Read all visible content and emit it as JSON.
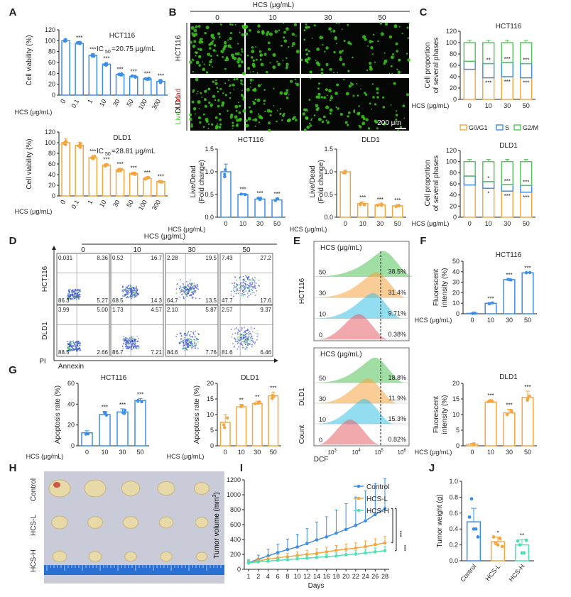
{
  "colors": {
    "blue": "#3d8ee6",
    "orange": "#f5a640",
    "green": "#55c45a",
    "red": "#e8636b",
    "cyan": "#3cc3e6",
    "teal": "#4fe0b4",
    "axis": "#222222",
    "live": "#3cc71f",
    "dead": "#e02020"
  },
  "panelA": {
    "letter": "A",
    "xlabel": "HCS (μg/mL)",
    "ylabel": "Cell viability (%)",
    "charts": [
      {
        "title": "HCT116",
        "ic50_prefix": "IC",
        "ic50_sub": "50",
        "ic50_value": "=20.75 μg/mL",
        "categories": [
          "0",
          "0.1",
          "1",
          "10",
          "30",
          "50",
          "100",
          "300"
        ],
        "values": [
          100,
          95,
          73,
          57,
          38,
          34,
          30,
          25
        ],
        "errors": [
          3,
          3,
          3,
          3,
          2,
          2,
          2,
          3
        ],
        "sig": [
          "",
          "***",
          "***",
          "***",
          "***",
          "***",
          "***",
          "***"
        ],
        "yticks": [
          "0",
          "20",
          "40",
          "60",
          "80",
          "100",
          "120"
        ],
        "ylim": [
          0,
          120
        ]
      },
      {
        "title": "DLD1",
        "ic50_prefix": "IC",
        "ic50_sub": "50",
        "ic50_value": "=28.81 μg/mL",
        "categories": [
          "0",
          "0.1",
          "1",
          "10",
          "30",
          "50",
          "100",
          "300"
        ],
        "values": [
          100,
          95,
          72,
          58,
          49,
          42,
          33,
          27
        ],
        "errors": [
          8,
          6,
          4,
          3,
          3,
          3,
          3,
          2
        ],
        "sig": [
          "",
          "",
          "***",
          "***",
          "***",
          "***",
          "***",
          "***"
        ],
        "yticks": [
          "0",
          "20",
          "40",
          "60",
          "80",
          "100",
          "120"
        ],
        "ylim": [
          0,
          120
        ]
      }
    ]
  },
  "panelB": {
    "letter": "B",
    "header": "HCS (μg/mL)",
    "concentrations": [
      "0",
      "10",
      "30",
      "50"
    ],
    "rows": [
      "HCT116",
      "DLD1"
    ],
    "live": "Live",
    "slash": " / ",
    "dead": "Dead",
    "scalebar": "200 μm",
    "charts": [
      {
        "title": "HCT116",
        "xlabel": "HCS (μg/mL)",
        "ylabel1": "Live/Dead",
        "ylabel2": "(Fold change)",
        "categories": [
          "0",
          "10",
          "30",
          "50"
        ],
        "values": [
          1.0,
          0.5,
          0.4,
          0.38
        ],
        "errors": [
          0.17,
          0.02,
          0.04,
          0.04
        ],
        "sig": [
          "",
          "***",
          "***",
          "***"
        ],
        "yticks": [
          "0.0",
          "0.5",
          "1.0",
          "1.5"
        ],
        "ylim": [
          0,
          1.5
        ]
      },
      {
        "title": "DLD1",
        "xlabel": "HCS (μg/mL)",
        "ylabel1": "Live/Dead",
        "ylabel2": "(Fold change)",
        "categories": [
          "0",
          "10",
          "30",
          "50"
        ],
        "values": [
          1.0,
          0.3,
          0.27,
          0.25
        ],
        "errors": [
          0.04,
          0.04,
          0.03,
          0.03
        ],
        "sig": [
          "",
          "***",
          "***",
          "***"
        ],
        "yticks": [
          "0.0",
          "0.5",
          "1.0",
          "1.5"
        ],
        "ylim": [
          0,
          1.5
        ]
      }
    ]
  },
  "panelC": {
    "letter": "C",
    "xlabel": "HCS (μg/mL)",
    "ylabel1": "Cell proportion",
    "ylabel2": "of several phases",
    "legend": [
      "G0/G1",
      "S",
      "G2/M"
    ],
    "charts": [
      {
        "title": "HCT116",
        "categories": [
          "0",
          "10",
          "30",
          "50"
        ],
        "g0g1": [
          53,
          38,
          40,
          38
        ],
        "s": [
          14,
          25,
          25,
          25
        ],
        "g2m": [
          33,
          37,
          35,
          37
        ],
        "sig_top": [
          "",
          "**",
          "***",
          "***"
        ],
        "sig_mid": [
          "",
          "***",
          "***",
          "***"
        ],
        "yticks": [
          "0",
          "20",
          "40",
          "60",
          "80",
          "100",
          "120"
        ]
      },
      {
        "title": "DLD1",
        "categories": [
          "0",
          "10",
          "30",
          "50"
        ],
        "g0g1": [
          58,
          52,
          47,
          45
        ],
        "s": [
          16,
          12,
          12,
          12
        ],
        "g2m": [
          26,
          36,
          41,
          43
        ],
        "sig_top": [
          "",
          "*",
          "***",
          "***"
        ],
        "sig_mid": [
          "",
          "*",
          "***",
          "***"
        ],
        "yticks": [
          "0",
          "20",
          "40",
          "60",
          "80",
          "100",
          "120"
        ]
      }
    ]
  },
  "panelD": {
    "letter": "D",
    "header": "HCS (μg/mL)",
    "concentrations": [
      "0",
      "10",
      "30",
      "50"
    ],
    "rows": [
      "HCT116",
      "DLD1"
    ],
    "xlabel": "Annexin",
    "ylabel": "PI",
    "quadrants": [
      [
        [
          "0.031",
          "8.36",
          "86.3",
          "5.27"
        ],
        [
          "0.52",
          "16.7",
          "68.5",
          "14.3"
        ],
        [
          "2.28",
          "19.5",
          "64.7",
          "13.5"
        ],
        [
          "7.43",
          "27.2",
          "47.7",
          "17.6"
        ]
      ],
      [
        [
          "3.99",
          "5.00",
          "88.5",
          "2.66"
        ],
        [
          "1.73",
          "4.57",
          "86.7",
          "7.21"
        ],
        [
          "2.10",
          "5.87",
          "84.6",
          "7.76"
        ],
        [
          "2.57",
          "9.37",
          "81.6",
          "6.46"
        ]
      ]
    ]
  },
  "panelE": {
    "letter": "E",
    "header": "HCS (μg/mL)",
    "concentrations": [
      "50",
      "30",
      "10",
      "0"
    ],
    "rows": [
      "HCT116",
      "DLD1"
    ],
    "xlabel": "DCF",
    "ylabel": "Count",
    "percentages": [
      [
        "38.5%",
        "31.4%",
        "9.71%",
        "0.38%"
      ],
      [
        "18.8%",
        "11.9%",
        "15.3%",
        "0.82%"
      ]
    ],
    "xticks": [
      "10",
      "10",
      "10",
      "10"
    ],
    "xtick_exp": [
      "3",
      "4",
      "5",
      "6"
    ]
  },
  "panelF": {
    "letter": "F",
    "xlabel": "HCS (μg/mL)",
    "ylabel1": "Fluorescent",
    "ylabel2": "intensity (%)",
    "charts": [
      {
        "title": "HCT116",
        "categories": [
          "0",
          "10",
          "30",
          "50"
        ],
        "values": [
          0.4,
          10,
          32.5,
          39
        ],
        "errors": [
          0.3,
          0.6,
          0.6,
          0.6
        ],
        "sig": [
          "",
          "***",
          "***",
          "***"
        ],
        "yticks": [
          "0",
          "10",
          "20",
          "30",
          "40",
          "50"
        ],
        "ylim": [
          0,
          50
        ]
      },
      {
        "title": "DLD1",
        "categories": [
          "0",
          "10",
          "30",
          "50"
        ],
        "values": [
          0.5,
          14,
          10.5,
          15.5
        ],
        "errors": [
          0.3,
          0.8,
          1.2,
          2.0
        ],
        "sig": [
          "",
          "***",
          "***",
          "***"
        ],
        "yticks": [
          "0",
          "5",
          "10",
          "15",
          "20"
        ],
        "ylim": [
          0,
          20
        ]
      }
    ]
  },
  "panelG": {
    "letter": "G",
    "xlabel": "HCS (μg/mL)",
    "ylabel": "Apoptosis rate (%)",
    "charts": [
      {
        "title": "HCT116",
        "categories": [
          "0",
          "10",
          "30",
          "50"
        ],
        "values": [
          12.5,
          30,
          32.5,
          43.5
        ],
        "errors": [
          2,
          3,
          3,
          2
        ],
        "sig": [
          "",
          "***",
          "***",
          "***"
        ],
        "yticks": [
          "0",
          "20",
          "40",
          "60"
        ],
        "ylim": [
          0,
          60
        ]
      },
      {
        "title": "DLD1",
        "categories": [
          "0",
          "10",
          "30",
          "50"
        ],
        "values": [
          7.5,
          12.5,
          13.5,
          16
        ],
        "errors": [
          2.5,
          0.8,
          0.8,
          1.2
        ],
        "sig": [
          "",
          "**",
          "**",
          "***"
        ],
        "yticks": [
          "0",
          "5",
          "10",
          "15",
          "20"
        ],
        "ylim": [
          0,
          20
        ]
      }
    ]
  },
  "panelH": {
    "letter": "H",
    "rows": [
      "Control",
      "HCS-L",
      "HCS-H"
    ]
  },
  "panelI": {
    "letter": "I",
    "ylabel": "Tumor volume (mm",
    "ylabel_sup": "3",
    "ylabel_end": ")",
    "xlabel": "Days",
    "legend": [
      "Control",
      "HCS-L",
      "HCS-H"
    ],
    "sig": [
      "***",
      "***"
    ],
    "xticks": [
      "1",
      "2",
      "4",
      "6",
      "8",
      "10",
      "12",
      "14",
      "16",
      "18",
      "20",
      "22",
      "24",
      "26",
      "28"
    ],
    "yticks": [
      "0",
      "200",
      "400",
      "600",
      "800",
      "1000",
      "1200"
    ],
    "ylim": [
      0,
      1200
    ],
    "series": [
      {
        "name": "Control",
        "values": [
          90,
          135,
          180,
          225,
          265,
          300,
          345,
          395,
          435,
          485,
          535,
          590,
          650,
          735,
          815
        ],
        "errors": [
          35,
          55,
          90,
          110,
          140,
          170,
          200,
          240,
          270,
          310,
          345,
          380,
          400,
          420,
          400
        ]
      },
      {
        "name": "HCS-L",
        "values": [
          90,
          115,
          135,
          155,
          170,
          185,
          200,
          215,
          235,
          255,
          270,
          285,
          305,
          330,
          355
        ],
        "errors": [
          25,
          30,
          35,
          40,
          45,
          50,
          55,
          60,
          60,
          65,
          70,
          70,
          75,
          80,
          85
        ]
      },
      {
        "name": "HCS-H",
        "values": [
          85,
          100,
          110,
          120,
          130,
          140,
          150,
          160,
          170,
          180,
          195,
          205,
          220,
          235,
          250
        ],
        "errors": [
          20,
          20,
          25,
          25,
          30,
          30,
          30,
          35,
          35,
          40,
          40,
          45,
          50,
          50,
          55
        ]
      }
    ]
  },
  "panelJ": {
    "letter": "J",
    "ylabel": "Tumor weight (g)",
    "categories": [
      "Control",
      "HCS-L",
      "HCS-H"
    ],
    "values": [
      0.49,
      0.24,
      0.2
    ],
    "errors": [
      0.17,
      0.06,
      0.07
    ],
    "sig": [
      "",
      "*",
      "**"
    ],
    "points": [
      [
        0.55,
        0.78,
        0.4,
        0.4,
        0.3
      ],
      [
        0.3,
        0.22,
        0.2,
        0.28,
        0.18
      ],
      [
        0.25,
        0.2,
        0.1,
        0.1,
        0.26
      ]
    ],
    "yticks": [
      "0.0",
      "0.2",
      "0.4",
      "0.6",
      "0.8",
      "1.0"
    ],
    "ylim": [
      0,
      1.0
    ]
  }
}
